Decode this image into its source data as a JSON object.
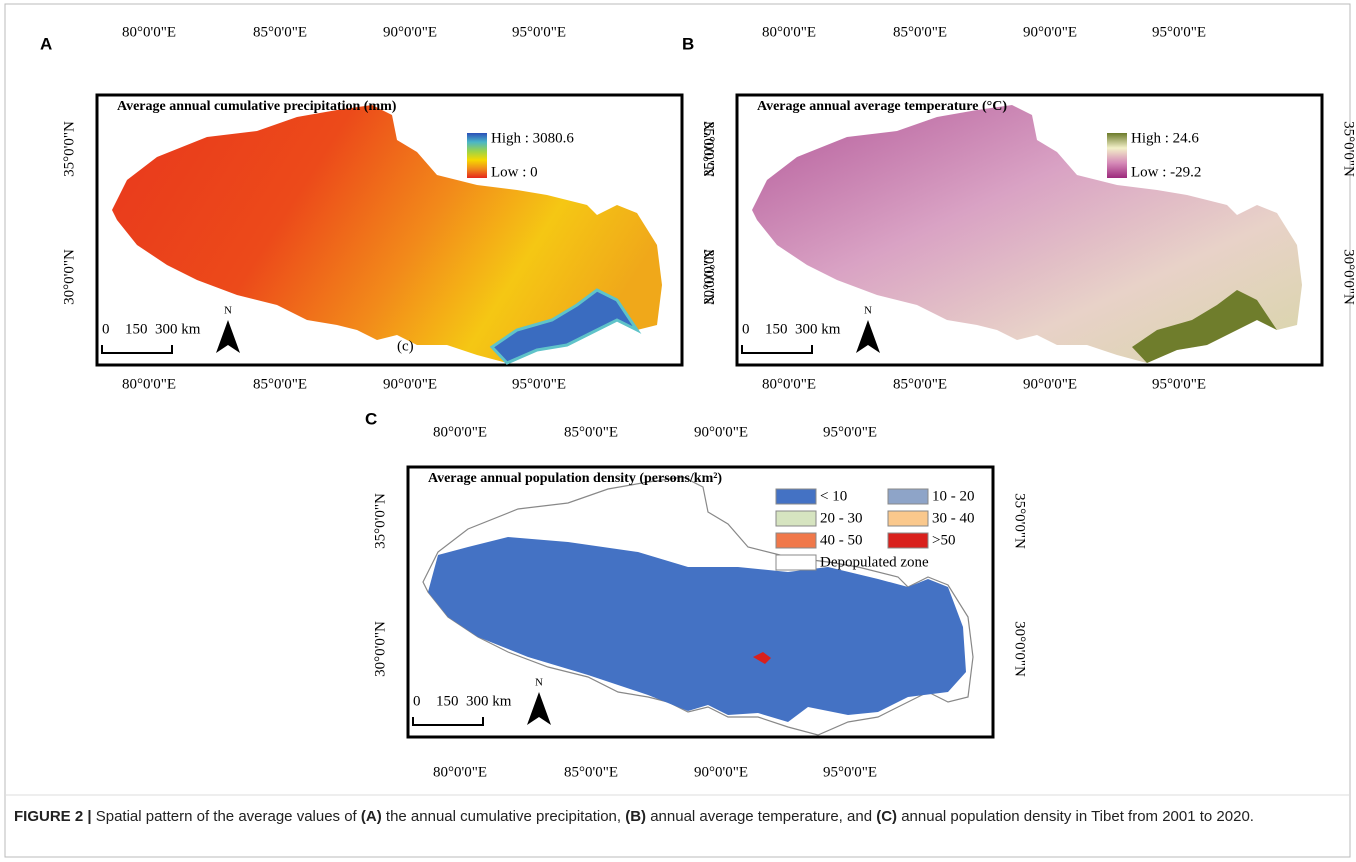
{
  "figure": {
    "panels": [
      {
        "letter": "A",
        "title": "Average annual cumulative precipitation (mm)",
        "legend": {
          "kind": "gradient",
          "high": "High : 3080.6",
          "low": "Low : 0",
          "colors": [
            "#2b4fb8",
            "#4ab6c8",
            "#9ad34b",
            "#f6d800",
            "#f08a1c",
            "#e5261c"
          ]
        },
        "lon_labels": [
          "80°0'0\"E",
          "85°0'0\"E",
          "90°0'0\"E",
          "95°0'0\"E"
        ],
        "lat_labels": [
          "35°0'0\"N",
          "30°0'0\"N"
        ],
        "scale_labels": [
          "0",
          "150",
          "300 km"
        ],
        "north": "N",
        "inset_label": "(c)"
      },
      {
        "letter": "B",
        "title": "Average annual average temperature (°C)",
        "legend": {
          "kind": "gradient",
          "high": "High : 24.6",
          "low": "Low : -29.2",
          "colors": [
            "#6b7a2a",
            "#f2f0c8",
            "#d68ab8",
            "#9c2a7c"
          ]
        },
        "lon_labels": [
          "80°0'0\"E",
          "85°0'0\"E",
          "90°0'0\"E",
          "95°0'0\"E"
        ],
        "lat_labels": [
          "35°0'0\"N",
          "30°0'0\"N"
        ],
        "scale_labels": [
          "0",
          "150",
          "300 km"
        ],
        "north": "N"
      },
      {
        "letter": "C",
        "title": "Average annual population density (persons/km²)",
        "legend": {
          "kind": "classes",
          "classes": [
            {
              "label": "< 10",
              "color": "#4472c4"
            },
            {
              "label": "10 - 20",
              "color": "#8ea4c8"
            },
            {
              "label": "20 - 30",
              "color": "#d6e4c0"
            },
            {
              "label": "30 - 40",
              "color": "#fac88c"
            },
            {
              "label": "40 - 50",
              "color": "#f0784a"
            },
            {
              "label": ">50",
              "color": "#d9201c"
            },
            {
              "label": "Depopulated zone",
              "color": "#ffffff"
            }
          ]
        },
        "lon_labels": [
          "80°0'0\"E",
          "85°0'0\"E",
          "90°0'0\"E",
          "95°0'0\"E"
        ],
        "lat_labels": [
          "35°0'0\"N",
          "30°0'0\"N"
        ],
        "scale_labels": [
          "0",
          "150",
          "300 km"
        ],
        "north": "N"
      }
    ],
    "caption": [
      {
        "text": "FIGURE 2 | ",
        "bold": true
      },
      {
        "text": "Spatial pattern of the average values of ",
        "bold": false
      },
      {
        "text": "(A)",
        "bold": true
      },
      {
        "text": " the annual cumulative precipitation, ",
        "bold": false
      },
      {
        "text": "(B)",
        "bold": true
      },
      {
        "text": " annual average temperature, and ",
        "bold": false
      },
      {
        "text": "(C)",
        "bold": true
      },
      {
        "text": " annual population density in Tibet from 2001 to 2020.",
        "bold": false
      }
    ]
  }
}
